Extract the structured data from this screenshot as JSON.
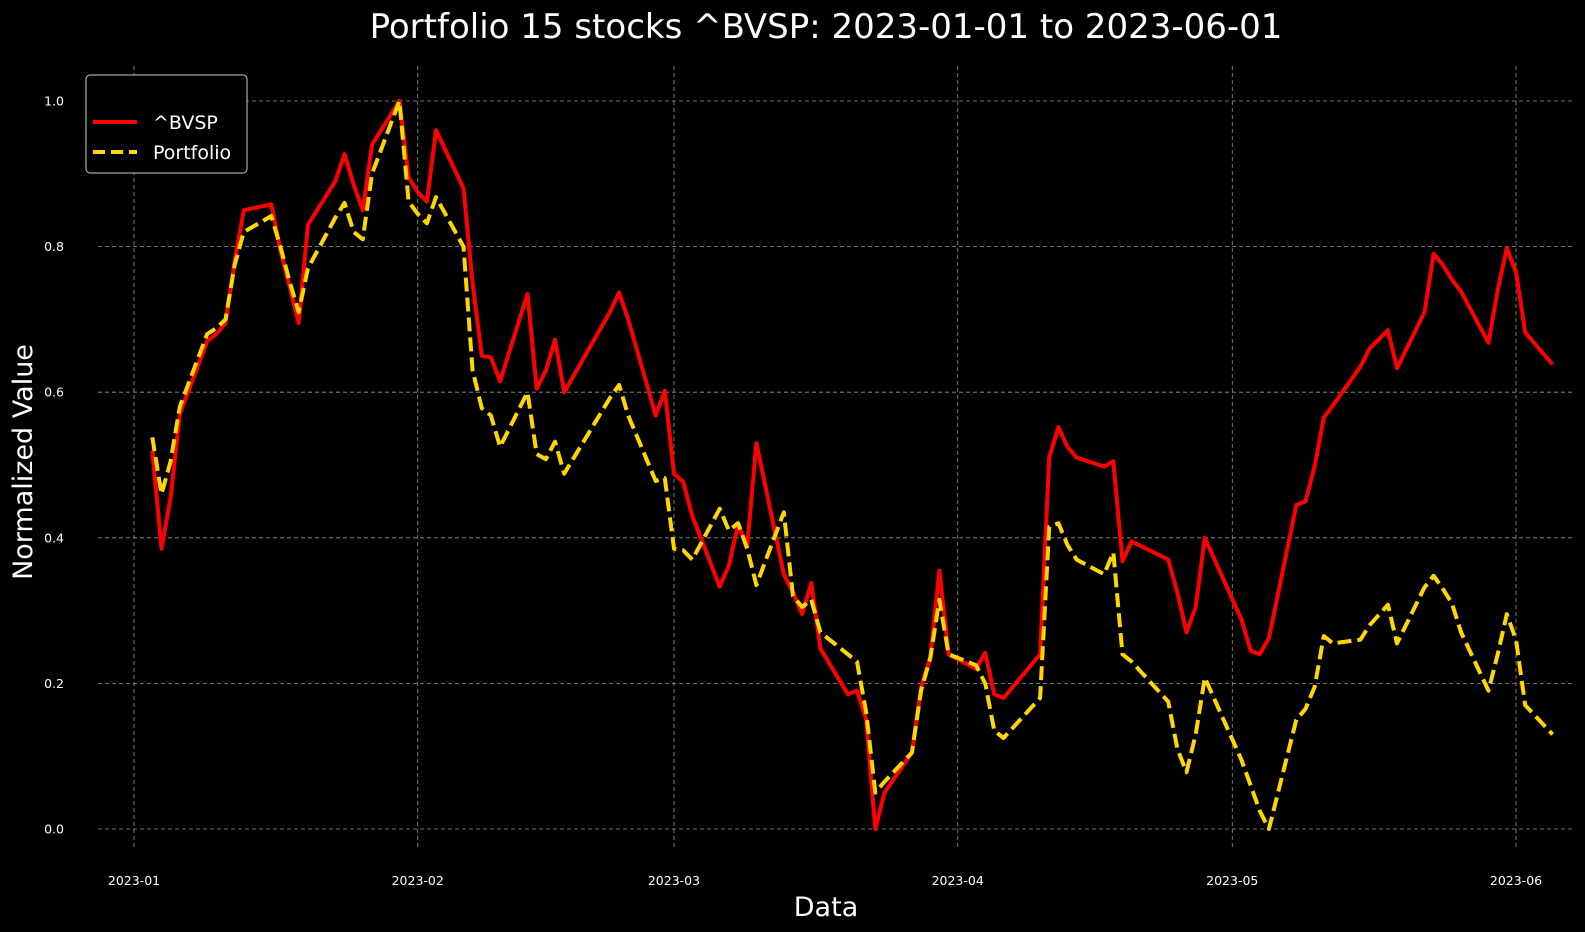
{
  "chart_data": {
    "type": "line",
    "title": "Portfolio 15 stocks ^BVSP: 2023-01-01 to 2023-06-01",
    "xlabel": "Data",
    "ylabel": "Normalized Value",
    "x_type": "date",
    "xlim": [
      "2023-01-01",
      "2023-06-01"
    ],
    "ylim": [
      0.0,
      1.0
    ],
    "grid": true,
    "legend_position": "top-left",
    "x_ticks": [
      "2023-01",
      "2023-02",
      "2023-03",
      "2023-04",
      "2023-05",
      "2023-06"
    ],
    "y_ticks": [
      "0.0",
      "0.2",
      "0.4",
      "0.6",
      "0.8",
      "1.0"
    ],
    "series": [
      {
        "name": "^BVSP",
        "color": "#ff0000",
        "style": "solid",
        "points": [
          [
            "2023-01-03",
            0.52
          ],
          [
            "2023-01-04",
            0.385
          ],
          [
            "2023-01-05",
            0.455
          ],
          [
            "2023-01-06",
            0.57
          ],
          [
            "2023-01-09",
            0.67
          ],
          [
            "2023-01-10",
            0.68
          ],
          [
            "2023-01-11",
            0.695
          ],
          [
            "2023-01-12",
            0.78
          ],
          [
            "2023-01-13",
            0.85
          ],
          [
            "2023-01-16",
            0.858
          ],
          [
            "2023-01-17",
            0.795
          ],
          [
            "2023-01-18",
            0.745
          ],
          [
            "2023-01-19",
            0.695
          ],
          [
            "2023-01-20",
            0.83
          ],
          [
            "2023-01-23",
            0.89
          ],
          [
            "2023-01-24",
            0.927
          ],
          [
            "2023-01-25",
            0.885
          ],
          [
            "2023-01-26",
            0.85
          ],
          [
            "2023-01-27",
            0.94
          ],
          [
            "2023-01-30",
            1.0
          ],
          [
            "2023-01-31",
            0.895
          ],
          [
            "2023-02-01",
            0.875
          ],
          [
            "2023-02-02",
            0.862
          ],
          [
            "2023-02-03",
            0.96
          ],
          [
            "2023-02-06",
            0.88
          ],
          [
            "2023-02-07",
            0.75
          ],
          [
            "2023-02-08",
            0.65
          ],
          [
            "2023-02-09",
            0.648
          ],
          [
            "2023-02-10",
            0.615
          ],
          [
            "2023-02-13",
            0.735
          ],
          [
            "2023-02-14",
            0.605
          ],
          [
            "2023-02-15",
            0.63
          ],
          [
            "2023-02-16",
            0.672
          ],
          [
            "2023-02-17",
            0.6
          ],
          [
            "2023-02-22",
            0.71
          ],
          [
            "2023-02-23",
            0.737
          ],
          [
            "2023-02-24",
            0.7
          ],
          [
            "2023-02-27",
            0.568
          ],
          [
            "2023-02-28",
            0.602
          ],
          [
            "2023-03-01",
            0.488
          ],
          [
            "2023-03-02",
            0.477
          ],
          [
            "2023-03-03",
            0.43
          ],
          [
            "2023-03-06",
            0.333
          ],
          [
            "2023-03-07",
            0.362
          ],
          [
            "2023-03-08",
            0.418
          ],
          [
            "2023-03-09",
            0.388
          ],
          [
            "2023-03-10",
            0.53
          ],
          [
            "2023-03-13",
            0.35
          ],
          [
            "2023-03-14",
            0.325
          ],
          [
            "2023-03-15",
            0.295
          ],
          [
            "2023-03-16",
            0.338
          ],
          [
            "2023-03-17",
            0.248
          ],
          [
            "2023-03-20",
            0.185
          ],
          [
            "2023-03-21",
            0.19
          ],
          [
            "2023-03-22",
            0.15
          ],
          [
            "2023-03-23",
            0.0
          ],
          [
            "2023-03-24",
            0.05
          ],
          [
            "2023-03-27",
            0.105
          ],
          [
            "2023-03-28",
            0.195
          ],
          [
            "2023-03-29",
            0.235
          ],
          [
            "2023-03-30",
            0.355
          ],
          [
            "2023-03-31",
            0.24
          ],
          [
            "2023-04-03",
            0.22
          ],
          [
            "2023-04-04",
            0.242
          ],
          [
            "2023-04-05",
            0.185
          ],
          [
            "2023-04-06",
            0.18
          ],
          [
            "2023-04-10",
            0.24
          ],
          [
            "2023-04-11",
            0.51
          ],
          [
            "2023-04-12",
            0.552
          ],
          [
            "2023-04-13",
            0.525
          ],
          [
            "2023-04-14",
            0.51
          ],
          [
            "2023-04-17",
            0.498
          ],
          [
            "2023-04-18",
            0.505
          ],
          [
            "2023-04-19",
            0.368
          ],
          [
            "2023-04-20",
            0.395
          ],
          [
            "2023-04-24",
            0.37
          ],
          [
            "2023-04-25",
            0.325
          ],
          [
            "2023-04-26",
            0.27
          ],
          [
            "2023-04-27",
            0.305
          ],
          [
            "2023-04-28",
            0.4
          ],
          [
            "2023-05-02",
            0.288
          ],
          [
            "2023-05-03",
            0.245
          ],
          [
            "2023-05-04",
            0.24
          ],
          [
            "2023-05-05",
            0.262
          ],
          [
            "2023-05-08",
            0.445
          ],
          [
            "2023-05-09",
            0.45
          ],
          [
            "2023-05-10",
            0.498
          ],
          [
            "2023-05-11",
            0.565
          ],
          [
            "2023-05-12",
            0.582
          ],
          [
            "2023-05-15",
            0.635
          ],
          [
            "2023-05-16",
            0.66
          ],
          [
            "2023-05-18",
            0.685
          ],
          [
            "2023-05-19",
            0.633
          ],
          [
            "2023-05-22",
            0.71
          ],
          [
            "2023-05-23",
            0.79
          ],
          [
            "2023-05-24",
            0.775
          ],
          [
            "2023-05-25",
            0.755
          ],
          [
            "2023-05-26",
            0.738
          ],
          [
            "2023-05-29",
            0.668
          ],
          [
            "2023-05-30",
            0.74
          ],
          [
            "2023-05-31",
            0.798
          ],
          [
            "2023-06-01",
            0.765
          ],
          [
            "2023-06-02",
            0.682
          ],
          [
            "2023-06-05",
            0.638
          ]
        ]
      },
      {
        "name": "Portfolio",
        "color": "#ffd700",
        "style": "dashed",
        "points": [
          [
            "2023-01-03",
            0.538
          ],
          [
            "2023-01-04",
            0.46
          ],
          [
            "2023-01-05",
            0.505
          ],
          [
            "2023-01-06",
            0.58
          ],
          [
            "2023-01-09",
            0.68
          ],
          [
            "2023-01-10",
            0.688
          ],
          [
            "2023-01-11",
            0.7
          ],
          [
            "2023-01-12",
            0.775
          ],
          [
            "2023-01-13",
            0.82
          ],
          [
            "2023-01-16",
            0.842
          ],
          [
            "2023-01-17",
            0.8
          ],
          [
            "2023-01-18",
            0.752
          ],
          [
            "2023-01-19",
            0.71
          ],
          [
            "2023-01-20",
            0.77
          ],
          [
            "2023-01-23",
            0.84
          ],
          [
            "2023-01-24",
            0.86
          ],
          [
            "2023-01-25",
            0.82
          ],
          [
            "2023-01-26",
            0.81
          ],
          [
            "2023-01-27",
            0.9
          ],
          [
            "2023-01-30",
            1.0
          ],
          [
            "2023-01-31",
            0.862
          ],
          [
            "2023-02-01",
            0.845
          ],
          [
            "2023-02-02",
            0.832
          ],
          [
            "2023-02-03",
            0.868
          ],
          [
            "2023-02-06",
            0.8
          ],
          [
            "2023-02-07",
            0.63
          ],
          [
            "2023-02-08",
            0.578
          ],
          [
            "2023-02-09",
            0.568
          ],
          [
            "2023-02-10",
            0.525
          ],
          [
            "2023-02-13",
            0.6
          ],
          [
            "2023-02-14",
            0.515
          ],
          [
            "2023-02-15",
            0.508
          ],
          [
            "2023-02-16",
            0.532
          ],
          [
            "2023-02-17",
            0.488
          ],
          [
            "2023-02-22",
            0.592
          ],
          [
            "2023-02-23",
            0.61
          ],
          [
            "2023-02-24",
            0.568
          ],
          [
            "2023-02-27",
            0.478
          ],
          [
            "2023-02-28",
            0.482
          ],
          [
            "2023-03-01",
            0.385
          ],
          [
            "2023-03-02",
            0.383
          ],
          [
            "2023-03-03",
            0.37
          ],
          [
            "2023-03-06",
            0.44
          ],
          [
            "2023-03-07",
            0.41
          ],
          [
            "2023-03-08",
            0.42
          ],
          [
            "2023-03-09",
            0.385
          ],
          [
            "2023-03-10",
            0.335
          ],
          [
            "2023-03-13",
            0.435
          ],
          [
            "2023-03-14",
            0.32
          ],
          [
            "2023-03-15",
            0.305
          ],
          [
            "2023-03-16",
            0.315
          ],
          [
            "2023-03-17",
            0.27
          ],
          [
            "2023-03-20",
            0.24
          ],
          [
            "2023-03-21",
            0.23
          ],
          [
            "2023-03-22",
            0.16
          ],
          [
            "2023-03-23",
            0.05
          ],
          [
            "2023-03-24",
            0.065
          ],
          [
            "2023-03-27",
            0.105
          ],
          [
            "2023-03-28",
            0.19
          ],
          [
            "2023-03-29",
            0.235
          ],
          [
            "2023-03-30",
            0.315
          ],
          [
            "2023-03-31",
            0.24
          ],
          [
            "2023-04-03",
            0.225
          ],
          [
            "2023-04-04",
            0.2
          ],
          [
            "2023-04-05",
            0.135
          ],
          [
            "2023-04-06",
            0.125
          ],
          [
            "2023-04-10",
            0.18
          ],
          [
            "2023-04-11",
            0.415
          ],
          [
            "2023-04-12",
            0.42
          ],
          [
            "2023-04-13",
            0.39
          ],
          [
            "2023-04-14",
            0.37
          ],
          [
            "2023-04-17",
            0.35
          ],
          [
            "2023-04-18",
            0.38
          ],
          [
            "2023-04-19",
            0.24
          ],
          [
            "2023-04-20",
            0.23
          ],
          [
            "2023-04-24",
            0.175
          ],
          [
            "2023-04-25",
            0.11
          ],
          [
            "2023-04-26",
            0.078
          ],
          [
            "2023-04-27",
            0.13
          ],
          [
            "2023-04-28",
            0.208
          ],
          [
            "2023-05-02",
            0.095
          ],
          [
            "2023-05-03",
            0.06
          ],
          [
            "2023-05-04",
            0.025
          ],
          [
            "2023-05-05",
            0.0
          ],
          [
            "2023-05-08",
            0.15
          ],
          [
            "2023-05-09",
            0.165
          ],
          [
            "2023-05-10",
            0.195
          ],
          [
            "2023-05-11",
            0.265
          ],
          [
            "2023-05-12",
            0.255
          ],
          [
            "2023-05-15",
            0.26
          ],
          [
            "2023-05-16",
            0.28
          ],
          [
            "2023-05-18",
            0.308
          ],
          [
            "2023-05-19",
            0.255
          ],
          [
            "2023-05-22",
            0.332
          ],
          [
            "2023-05-23",
            0.348
          ],
          [
            "2023-05-24",
            0.33
          ],
          [
            "2023-05-25",
            0.31
          ],
          [
            "2023-05-26",
            0.27
          ],
          [
            "2023-05-29",
            0.19
          ],
          [
            "2023-05-30",
            0.24
          ],
          [
            "2023-05-31",
            0.295
          ],
          [
            "2023-06-01",
            0.26
          ],
          [
            "2023-06-02",
            0.17
          ],
          [
            "2023-06-05",
            0.13
          ]
        ]
      }
    ]
  }
}
